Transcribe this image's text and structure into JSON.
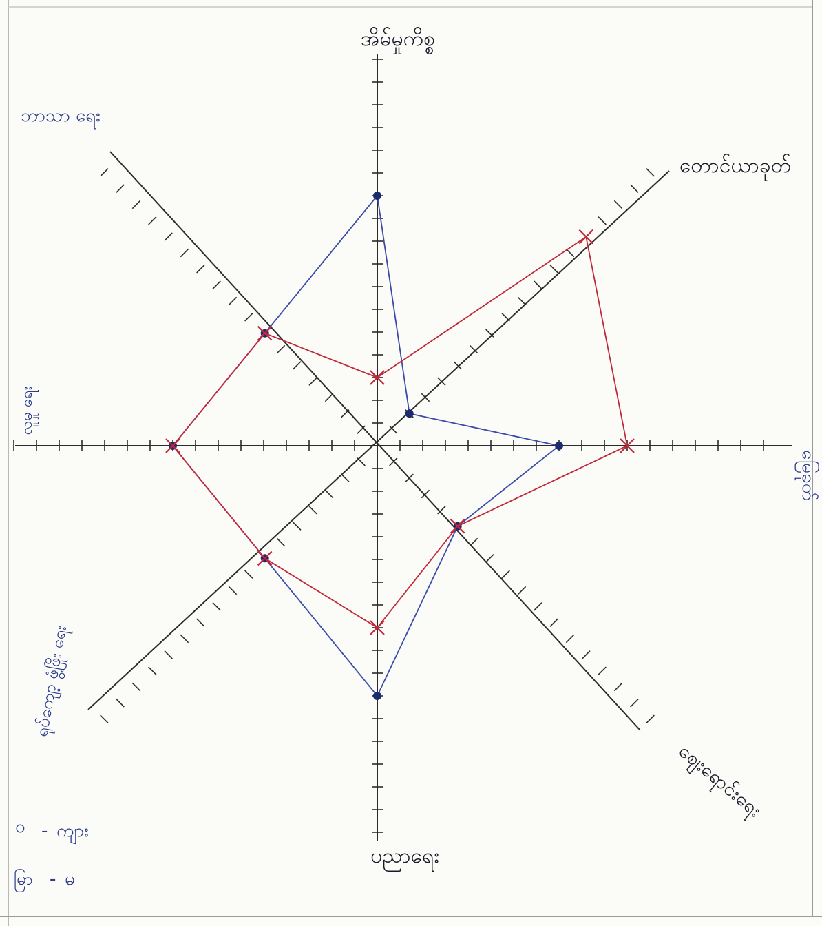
{
  "chart_data": {
    "type": "radar",
    "title": "",
    "axes": [
      {
        "label": "အိမ်မှုကိစ္စ",
        "color": "#1a1a2a"
      },
      {
        "label": "တောင်ယာခုတ်",
        "color": "#1a1a2a"
      },
      {
        "label": "မြေခုတ်",
        "color": "#2a3a8c"
      },
      {
        "label": "စျေးရောင်းရေး",
        "color": "#1a1a2a"
      },
      {
        "label": "ပညာရေး",
        "color": "#1a1a2a"
      },
      {
        "label": "ရုပ်ကျော့ ဖွံ့ဖြိုး ရေး",
        "color": "#2a3a8c"
      },
      {
        "label": "လူမှု ရေး",
        "color": "#2a3a8c"
      },
      {
        "label": "ဘာသာ ရေး",
        "color": "#2a3a8c"
      }
    ],
    "max": 17,
    "series": [
      {
        "name": "ကျား",
        "color": "#3b4aa8",
        "marker": "dot",
        "values": [
          11,
          2,
          8,
          5,
          11,
          7,
          9,
          7
        ]
      },
      {
        "name": "မ",
        "color": "#c0283a",
        "marker": "x",
        "values": [
          3,
          13,
          11,
          5,
          8,
          7,
          9,
          7
        ]
      }
    ],
    "grid": false
  },
  "legend": {
    "male_label": "ကျား",
    "female_label": "မ",
    "male_prefix": "ဝ",
    "female_prefix": "မြာ"
  }
}
